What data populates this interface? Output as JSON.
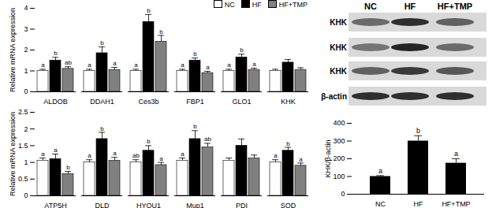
{
  "chart_data": [
    {
      "type": "bar",
      "y_label": "Relative mRNA expression",
      "categories": [
        "ALDOB",
        "DDAH1",
        "Ces3b",
        "FBP1",
        "GLO1",
        "KHK"
      ],
      "series": [
        {
          "name": "NC",
          "color": "#ffffff",
          "values": [
            1.0,
            1.0,
            1.0,
            1.0,
            1.0,
            1.0
          ],
          "errors": [
            0.08,
            0.08,
            0.08,
            0.08,
            0.08,
            0.08
          ],
          "letters": [
            "a",
            "a",
            "a",
            "a",
            "a",
            null
          ]
        },
        {
          "name": "HF",
          "color": "#000000",
          "values": [
            1.5,
            1.85,
            3.35,
            1.5,
            1.65,
            1.4
          ],
          "errors": [
            0.15,
            0.3,
            0.35,
            0.12,
            0.15,
            0.15
          ],
          "letters": [
            "b",
            "b",
            "b",
            "b",
            "b",
            null
          ]
        },
        {
          "name": "HF+TMP",
          "color": "#808080",
          "values": [
            1.1,
            1.05,
            2.4,
            0.9,
            1.05,
            1.05
          ],
          "errors": [
            0.1,
            0.12,
            0.3,
            0.08,
            0.08,
            0.1
          ],
          "letters": [
            "ab",
            "a",
            "b",
            "a",
            "a",
            null
          ]
        }
      ],
      "ylim": [
        0,
        4
      ],
      "yticks": [
        0,
        1,
        2,
        3,
        4
      ],
      "legend": "top-right"
    },
    {
      "type": "bar",
      "y_label": "Relative mRNA expression",
      "categories": [
        "ATP5H",
        "DLD",
        "HYOU1",
        "Mup1",
        "PDI",
        "SOD"
      ],
      "series": [
        {
          "name": "NC",
          "color": "#ffffff",
          "values": [
            1.05,
            1.0,
            1.0,
            1.05,
            1.05,
            1.0
          ],
          "errors": [
            0.08,
            0.08,
            0.08,
            0.08,
            0.08,
            0.08
          ],
          "letters": [
            "a",
            "a",
            "ab",
            "a",
            null,
            "a"
          ]
        },
        {
          "name": "HF",
          "color": "#000000",
          "values": [
            1.1,
            1.7,
            1.35,
            1.7,
            1.5,
            1.35
          ],
          "errors": [
            0.15,
            0.2,
            0.15,
            0.25,
            0.2,
            0.1
          ],
          "letters": [
            "a",
            "b",
            "b",
            "b",
            null,
            "b"
          ]
        },
        {
          "name": "HF+TMP",
          "color": "#808080",
          "values": [
            0.65,
            1.05,
            0.92,
            1.45,
            1.12,
            0.9
          ],
          "errors": [
            0.08,
            0.1,
            0.08,
            0.12,
            0.1,
            0.08
          ],
          "letters": [
            "b",
            "a",
            "a",
            "ab",
            null,
            "a"
          ]
        }
      ],
      "ylim": [
        0,
        2.5
      ],
      "yticks": [
        0,
        0.5,
        1,
        1.5,
        2,
        2.5
      ]
    },
    {
      "type": "bar",
      "y_label": "KHK/β-actin",
      "categories": [
        "NC",
        "HF",
        "HF+TMP"
      ],
      "color": "#000000",
      "values": [
        100,
        300,
        175
      ],
      "errors": [
        5,
        30,
        25
      ],
      "letters": [
        "a",
        "b",
        "a"
      ],
      "ylim": [
        0,
        400
      ],
      "yticks": [
        0,
        100,
        200,
        300,
        400
      ]
    }
  ],
  "blot": {
    "columns": [
      "NC",
      "HF",
      "HF+TMP"
    ],
    "rows": [
      "KHK",
      "KHK",
      "KHK",
      "β-actin"
    ]
  }
}
